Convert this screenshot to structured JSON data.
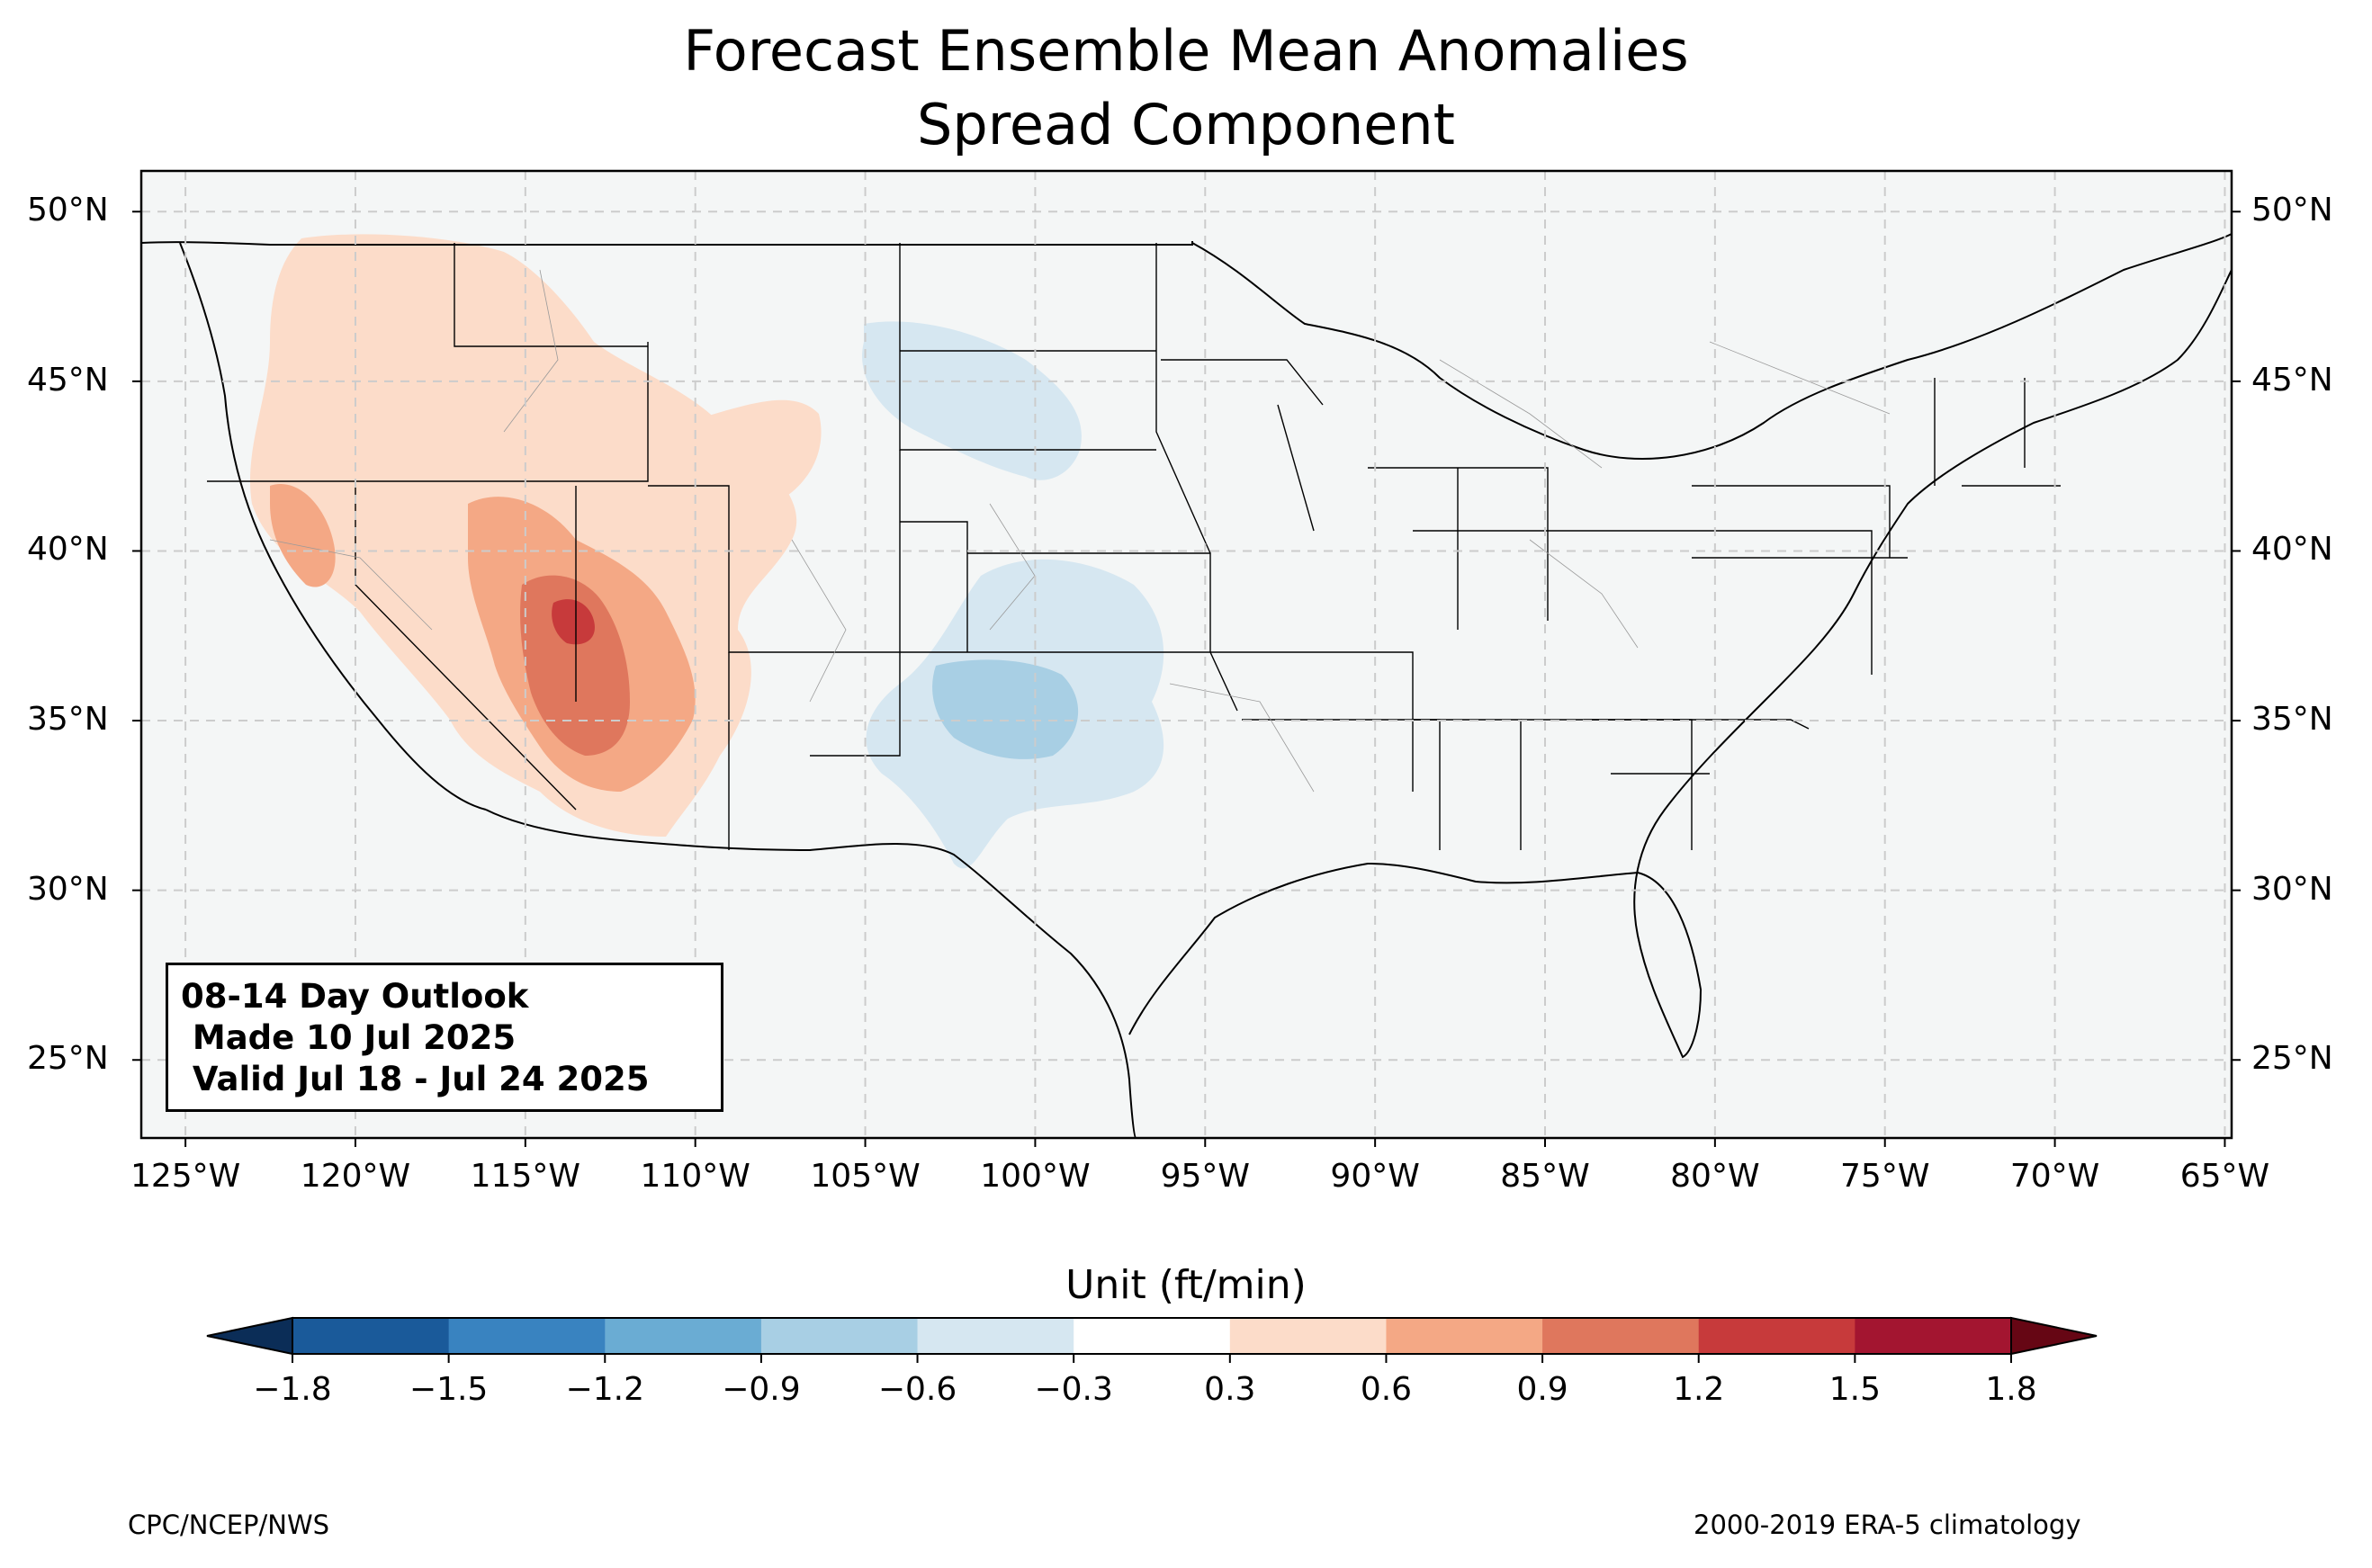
{
  "title": {
    "line1": "Forecast Ensemble Mean Anomalies",
    "line2": "Spread Component"
  },
  "map": {
    "projection": "PlateCarree",
    "extent": {
      "lon": [
        -126.3,
        -64.8
      ],
      "lat": [
        22.7,
        51.2
      ]
    },
    "lon_ticks": [
      "125°W",
      "120°W",
      "115°W",
      "110°W",
      "105°W",
      "100°W",
      "95°W",
      "90°W",
      "85°W",
      "80°W",
      "75°W",
      "70°W",
      "65°W"
    ],
    "lat_ticks": [
      "25°N",
      "30°N",
      "35°N",
      "40°N",
      "45°N",
      "50°N"
    ],
    "background_color": "#f4f6f6",
    "grid": "dashed"
  },
  "info_box": {
    "line1": "08-14 Day Outlook",
    "line2": " Made 10 Jul 2025",
    "line3": " Valid Jul 18 - Jul 24 2025"
  },
  "colorbar": {
    "label": "Unit (ft/min)",
    "ticks": [
      "−1.8",
      "−1.5",
      "−1.2",
      "−0.9",
      "−0.6",
      "−0.3",
      "0.3",
      "0.6",
      "0.9",
      "1.2",
      "1.5",
      "1.8"
    ],
    "colors": [
      "#1a5a9a",
      "#3983c0",
      "#6aacd3",
      "#a8cfe4",
      "#d6e7f1",
      "#ffffff",
      "#fcdcc9",
      "#f4a885",
      "#df775d",
      "#c73a3b",
      "#a31530"
    ],
    "extend_low_color": "#0b2d57",
    "extend_high_color": "#660614"
  },
  "footer": {
    "left": "CPC/NCEP/NWS",
    "right": "2000-2019 ERA-5 climatology"
  }
}
